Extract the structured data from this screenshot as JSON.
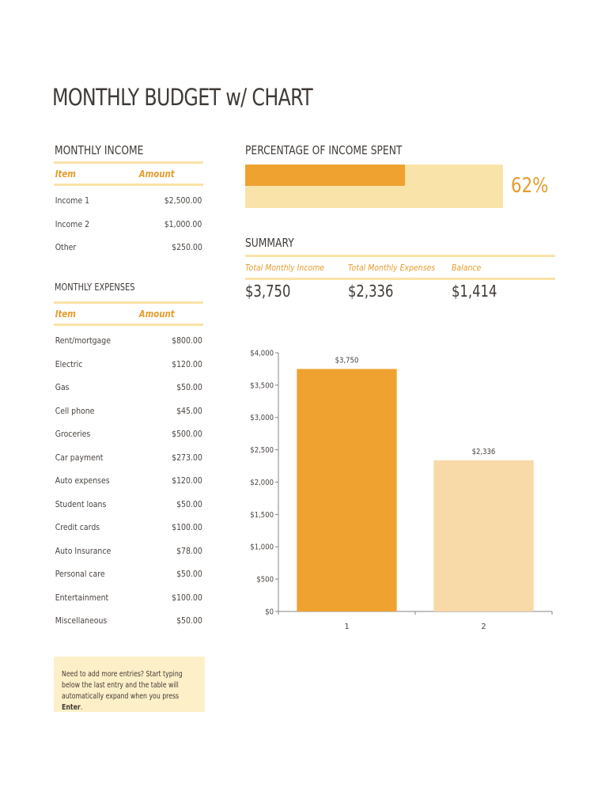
{
  "title": "MONTHLY BUDGET w/ CHART",
  "income": {
    "heading": "MONTHLY INCOME",
    "col_item": "Item",
    "col_amount": "Amount",
    "rows": [
      {
        "item": "Income 1",
        "amount": "$2,500.00"
      },
      {
        "item": "Income 2",
        "amount": "$1,000.00"
      },
      {
        "item": "Other",
        "amount": "$250.00"
      }
    ]
  },
  "expenses": {
    "heading": "MONTHLY EXPENSES",
    "col_item": "Item",
    "col_amount": "Amount",
    "rows": [
      {
        "item": "Rent/mortgage",
        "amount": "$800.00"
      },
      {
        "item": "Electric",
        "amount": "$120.00"
      },
      {
        "item": "Gas",
        "amount": "$50.00"
      },
      {
        "item": "Cell phone",
        "amount": "$45.00"
      },
      {
        "item": "Groceries",
        "amount": "$500.00"
      },
      {
        "item": "Car payment",
        "amount": "$273.00"
      },
      {
        "item": "Auto expenses",
        "amount": "$120.00"
      },
      {
        "item": "Student loans",
        "amount": "$50.00"
      },
      {
        "item": "Credit cards",
        "amount": "$100.00"
      },
      {
        "item": "Auto Insurance",
        "amount": "$78.00"
      },
      {
        "item": "Personal care",
        "amount": "$50.00"
      },
      {
        "item": "Entertainment",
        "amount": "$100.00"
      },
      {
        "item": "Miscellaneous",
        "amount": "$50.00"
      }
    ]
  },
  "percentage": {
    "heading": "PERCENTAGE OF INCOME SPENT",
    "label": "62%",
    "fraction": 0.62
  },
  "summary": {
    "heading": "SUMMARY",
    "income_label": "Total Monthly Income",
    "expenses_label": "Total Monthly Expenses",
    "balance_label": "Balance",
    "income_value": "$3,750",
    "expenses_value": "$2,336",
    "balance_value": "$1,414"
  },
  "note": {
    "text": "Need to add more entries? Start typing below the last entry and the table will automatically expand when you press ",
    "bold": "Enter",
    "end": "."
  },
  "colors": {
    "accent": "#efa230",
    "accent_light": "#f9e3a8",
    "bar2": "#f8d9a8",
    "note_bg": "#fdefc8"
  },
  "chart_data": {
    "type": "bar",
    "categories": [
      "1",
      "2"
    ],
    "values": [
      3750,
      2336
    ],
    "data_labels": [
      "$3,750",
      "$2,336"
    ],
    "ylim": [
      0,
      4000
    ],
    "yticks": [
      0,
      500,
      1000,
      1500,
      2000,
      2500,
      3000,
      3500,
      4000
    ],
    "ytick_labels": [
      "$0",
      "$500",
      "$1,000",
      "$1,500",
      "$2,000",
      "$2,500",
      "$3,000",
      "$3,500",
      "$4,000"
    ],
    "bar_colors": [
      "#efa230",
      "#f8d9a8"
    ],
    "grid": false,
    "title": "",
    "xlabel": "",
    "ylabel": ""
  }
}
